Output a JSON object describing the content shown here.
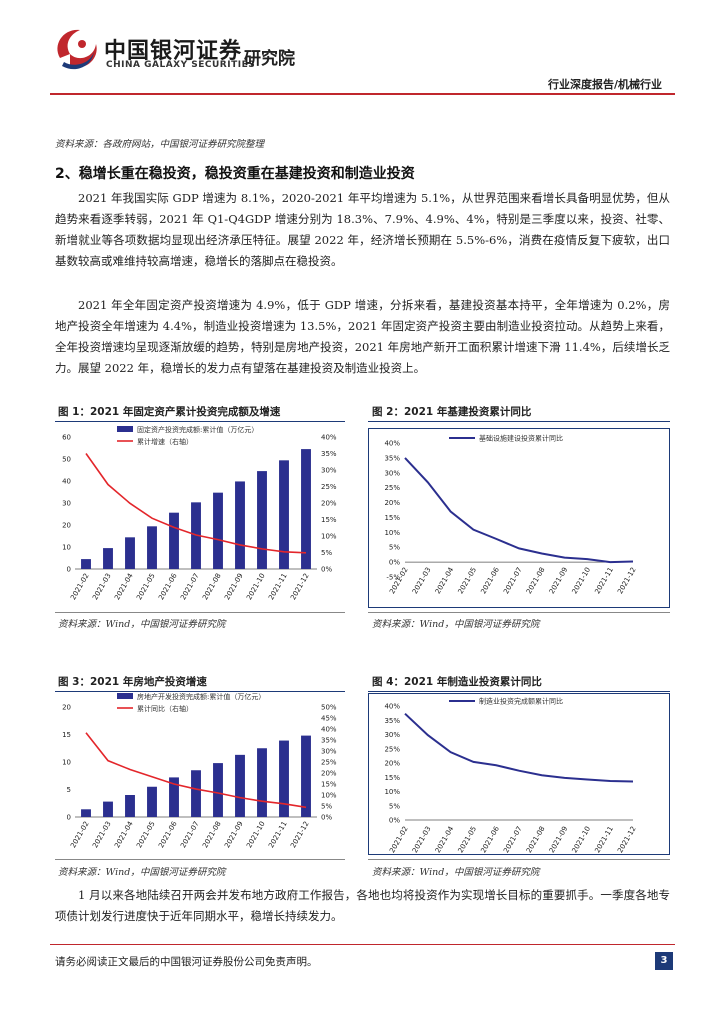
{
  "header": {
    "logo_cn": "中国银河证券",
    "logo_en": "CHINA GALAXY SECURITIES",
    "institute": "研究院",
    "report_type": "行业深度报告/机械行业"
  },
  "top_source": "资料来源：各政府网站，中国银河证券研究院整理",
  "section_heading": "2、稳增长重在稳投资，稳投资重在基建投资和制造业投资",
  "paragraphs": [
    "2021 年我国实际 GDP 增速为 8.1%，2020-2021 年平均增速为 5.1%，从世界范围来看增长具备明显优势，但从趋势来看逐季转弱，2021 年 Q1-Q4GDP 增速分别为 18.3%、7.9%、4.9%、4%，特别是三季度以来，投资、社零、新增就业等各项数据均显现出经济承压特征。展望 2022 年，经济增长预期在 5.5%-6%，消费在疫情反复下疲软，出口基数较高或难维持较高增速，稳增长的落脚点在稳投资。",
    "2021 年全年固定资产投资增速为 4.9%，低于 GDP 增速，分拆来看，基建投资基本持平，全年增速为 0.2%，房地产投资全年增速为 4.4%，制造业投资增速为 13.5%，2021 年固定资产投资主要由制造业投资拉动。从趋势上来看，全年投资增速均呈现逐渐放缓的趋势，特别是房地产投资，2021 年房地产新开工面积累计增速下滑 11.4%，后续增长乏力。展望 2022 年，稳增长的发力点有望落在基建投资及制造业投资上。",
    "1 月以来各地陆续召开两会并发布地方政府工作报告，各地也均将投资作为实现增长目标的重要抓手。一季度各地专项债计划发行进度快于近年同期水平，稳增长持续发力。"
  ],
  "figures": [
    {
      "title": "图 1：2021 年固定资产累计投资完成额及增速",
      "source": "资料来源：Wind，中国银河证券研究院"
    },
    {
      "title": "图 2：2021 年基建投资累计同比",
      "source": "资料来源：Wind，中国银河证券研究院"
    },
    {
      "title": "图 3：2021 年房地产投资增速",
      "source": "资料来源：Wind，中国银河证券研究院"
    },
    {
      "title": "图 4：2021 年制造业投资累计同比",
      "source": "资料来源：Wind，中国银河证券研究院"
    }
  ],
  "footer": {
    "disclaimer": "请务必阅读正文最后的中国银河证券股份公司免责声明。",
    "page": "3"
  },
  "colors": {
    "brand_red": "#c0272d",
    "navy": "#1d3a78",
    "bar": "#2b2f8f",
    "line_red": "#e3262b"
  },
  "chart_data": [
    {
      "type": "bar",
      "categories": [
        "2021-02",
        "2021-03",
        "2021-04",
        "2021-05",
        "2021-06",
        "2021-07",
        "2021-08",
        "2021-09",
        "2021-10",
        "2021-11",
        "2021-12"
      ],
      "series": [
        {
          "name": "固定资产投资完成额:累计值（万亿元）",
          "values": [
            4.5,
            9.5,
            14.4,
            19.4,
            25.6,
            30.3,
            34.7,
            39.8,
            44.5,
            49.4,
            54.5
          ],
          "axis": "left",
          "render": "bar"
        },
        {
          "name": "累计增速（右轴）",
          "values": [
            35.0,
            25.6,
            19.9,
            15.4,
            12.6,
            10.3,
            8.9,
            7.3,
            6.1,
            5.2,
            4.9
          ],
          "axis": "right",
          "render": "line"
        }
      ],
      "ylim": [
        0,
        60
      ],
      "yticks": [
        0,
        10,
        20,
        30,
        40,
        50,
        60
      ],
      "y2lim": [
        0,
        40
      ],
      "y2ticks": [
        "0%",
        "5%",
        "10%",
        "15%",
        "20%",
        "25%",
        "30%",
        "35%",
        "40%"
      ],
      "legend": "top"
    },
    {
      "type": "line",
      "categories": [
        "2021-02",
        "2021-03",
        "2021-04",
        "2021-05",
        "2021-06",
        "2021-07",
        "2021-08",
        "2021-09",
        "2021-10",
        "2021-11",
        "2021-12"
      ],
      "series": [
        {
          "name": "基础设施建设投资累计同比",
          "values": [
            35.0,
            26.8,
            17.0,
            10.9,
            7.8,
            4.6,
            2.9,
            1.5,
            1.0,
            0.0,
            0.2
          ]
        }
      ],
      "ylim": [
        -5,
        40
      ],
      "yticks": [
        "-5%",
        "0%",
        "5%",
        "10%",
        "15%",
        "20%",
        "25%",
        "30%",
        "35%",
        "40%"
      ],
      "legend": "top"
    },
    {
      "type": "bar",
      "categories": [
        "2021-02",
        "2021-03",
        "2021-04",
        "2021-05",
        "2021-06",
        "2021-07",
        "2021-08",
        "2021-09",
        "2021-10",
        "2021-11",
        "2021-12"
      ],
      "series": [
        {
          "name": "房地产开发投资完成额:累计值（万亿元）",
          "values": [
            1.4,
            2.8,
            4.0,
            5.5,
            7.2,
            8.5,
            9.8,
            11.3,
            12.5,
            13.9,
            14.8
          ],
          "axis": "left",
          "render": "bar"
        },
        {
          "name": "累计同比（右轴）",
          "values": [
            38.3,
            25.6,
            21.6,
            18.3,
            15.0,
            12.7,
            10.9,
            8.8,
            7.2,
            6.0,
            4.4
          ],
          "axis": "right",
          "render": "line"
        }
      ],
      "ylim": [
        0,
        20
      ],
      "yticks": [
        0,
        5,
        10,
        15,
        20
      ],
      "y2lim": [
        0,
        50
      ],
      "y2ticks": [
        "0%",
        "5%",
        "10%",
        "15%",
        "20%",
        "25%",
        "30%",
        "35%",
        "40%",
        "45%",
        "50%"
      ],
      "legend": "top"
    },
    {
      "type": "line",
      "categories": [
        "2021-02",
        "2021-03",
        "2021-04",
        "2021-05",
        "2021-06",
        "2021-07",
        "2021-08",
        "2021-09",
        "2021-10",
        "2021-11",
        "2021-12"
      ],
      "series": [
        {
          "name": "制造业投资完成额累计同比",
          "values": [
            37.3,
            29.8,
            23.8,
            20.4,
            19.2,
            17.3,
            15.7,
            14.8,
            14.2,
            13.7,
            13.5
          ]
        }
      ],
      "ylim": [
        0,
        40
      ],
      "yticks": [
        "0%",
        "5%",
        "10%",
        "15%",
        "20%",
        "25%",
        "30%",
        "35%",
        "40%"
      ],
      "legend": "top"
    }
  ]
}
